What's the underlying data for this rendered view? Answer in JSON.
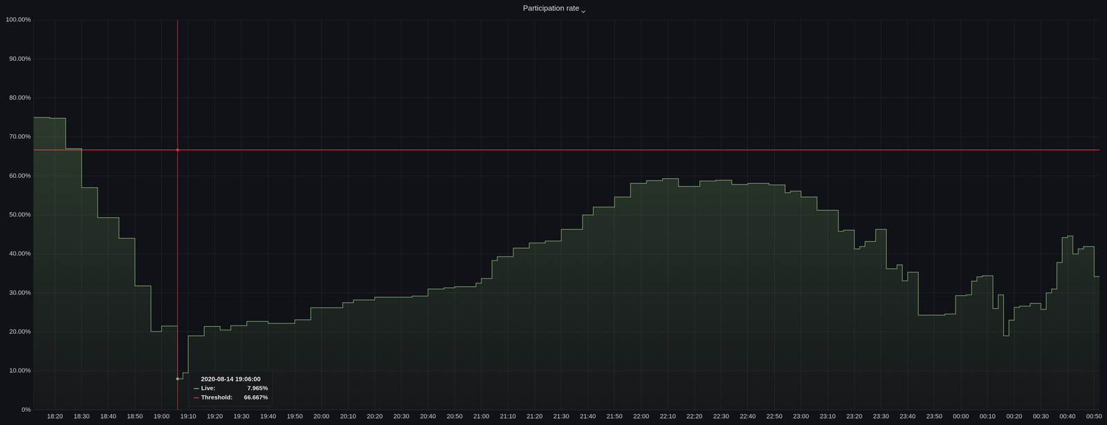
{
  "chart_data": {
    "type": "line",
    "title": "Participation rate",
    "line_style": "step",
    "grid": true,
    "categories": [
      null,
      null,
      null,
      null,
      "18:20",
      null,
      null,
      null,
      null,
      "18:30",
      null,
      null,
      null,
      null,
      "18:40",
      null,
      null,
      null,
      null,
      "18:50",
      null,
      null,
      null,
      null,
      "19:00",
      null,
      null,
      null,
      null,
      "19:10",
      null,
      null,
      null,
      null,
      "19:20",
      null,
      null,
      null,
      null,
      "19:30",
      null,
      null,
      null,
      null,
      "19:40",
      null,
      null,
      null,
      null,
      "19:50",
      null,
      null,
      null,
      null,
      "20:00",
      null,
      null,
      null,
      null,
      "20:10",
      null,
      null,
      null,
      null,
      "20:20",
      null,
      null,
      null,
      null,
      "20:30",
      null,
      null,
      null,
      null,
      "20:40",
      null,
      null,
      null,
      null,
      "20:50",
      null,
      null,
      null,
      null,
      "21:00",
      null,
      null,
      null,
      null,
      "21:10",
      null,
      null,
      null,
      null,
      "21:20",
      null,
      null,
      null,
      null,
      "21:30",
      null,
      null,
      null,
      null,
      "21:40",
      null,
      null,
      null,
      null,
      "21:50",
      null,
      null,
      null,
      null,
      "22:00",
      null,
      null,
      null,
      null,
      "22:10",
      null,
      null,
      null,
      null,
      "22:20",
      null,
      null,
      null,
      null,
      "22:30",
      null,
      null,
      null,
      null,
      "22:40",
      null,
      null,
      null,
      null,
      "22:50",
      null,
      null,
      null,
      null,
      "23:00",
      null,
      null,
      null,
      null,
      "23:10",
      null,
      null,
      null,
      null,
      "23:20",
      null,
      null,
      null,
      null,
      "23:30",
      null,
      null,
      null,
      null,
      "23:40",
      null,
      null,
      null,
      null,
      "23:50",
      null,
      null,
      null,
      null,
      "00:00",
      null,
      null,
      null,
      null,
      "00:10",
      null,
      null,
      null,
      null,
      "00:20",
      null,
      null,
      null,
      null,
      "00:30",
      null,
      null,
      null,
      null,
      "00:40",
      null,
      null,
      null,
      null,
      "00:50",
      null
    ],
    "series": [
      {
        "name": "Live",
        "color": "#7eb26d",
        "type": "area",
        "values": [
          75,
          75,
          75,
          74.8,
          74.8,
          74.8,
          67,
          67,
          67,
          57,
          57,
          57,
          49.3,
          49.3,
          49.3,
          49.3,
          44,
          44,
          44,
          31.8,
          31.8,
          31.8,
          20.1,
          20.1,
          21.5,
          21.5,
          21.5,
          7.965,
          9.5,
          19,
          19,
          19,
          21.4,
          21.4,
          21.4,
          20.5,
          20.5,
          21.6,
          21.6,
          21.6,
          22.7,
          22.7,
          22.7,
          22.7,
          22.2,
          22.2,
          22.2,
          22.2,
          22.2,
          23.1,
          23.1,
          23.1,
          26.2,
          26.2,
          26.2,
          26.2,
          26.2,
          26.2,
          27.5,
          27.5,
          28.2,
          28.2,
          28.2,
          28.2,
          28.9,
          28.9,
          28.9,
          28.9,
          28.9,
          28.9,
          28.9,
          29.2,
          29.2,
          29.2,
          31,
          31,
          31,
          31.3,
          31.3,
          31.6,
          31.6,
          31.6,
          31.6,
          32.5,
          33.7,
          33.7,
          38.3,
          39.3,
          39.3,
          39.3,
          41.5,
          41.5,
          41.5,
          42.8,
          42.8,
          42.8,
          43.3,
          43.3,
          43.3,
          46.3,
          46.3,
          46.3,
          46.3,
          50,
          50,
          52,
          52,
          52,
          52,
          54.6,
          54.6,
          54.6,
          58.1,
          58.1,
          58.1,
          58.8,
          58.8,
          58.8,
          59.3,
          59.3,
          59.3,
          57.3,
          57.3,
          57.3,
          57.3,
          58.7,
          58.7,
          58.7,
          58.9,
          58.9,
          58.9,
          57.8,
          57.8,
          57.8,
          58.1,
          58.1,
          58.1,
          58.1,
          57.7,
          57.7,
          57.7,
          55.7,
          56.1,
          56.1,
          54.6,
          54.6,
          54.6,
          51.2,
          51.2,
          51.2,
          51.2,
          45.8,
          46.1,
          46.1,
          41.3,
          41.9,
          43.2,
          43.2,
          46.3,
          46.3,
          36.2,
          36.2,
          37.2,
          33.1,
          35.3,
          35.3,
          24.3,
          24.3,
          24.3,
          24.3,
          24.3,
          24.6,
          24.6,
          29.3,
          29.3,
          29.5,
          33,
          34.1,
          34.4,
          34.4,
          26,
          29.5,
          19,
          23,
          26.3,
          26.6,
          26.6,
          27.3,
          27.3,
          25.8,
          30,
          31,
          37.8,
          44.2,
          44.6,
          40,
          41.3,
          41.9,
          41.9,
          34.2,
          34.2
        ]
      },
      {
        "name": "Threshold",
        "color": "#e02f44",
        "type": "line",
        "values": [
          66.667,
          66.667,
          66.667,
          66.667,
          66.667,
          66.667,
          66.667,
          66.667,
          66.667,
          66.667,
          66.667,
          66.667,
          66.667,
          66.667,
          66.667,
          66.667,
          66.667,
          66.667,
          66.667,
          66.667,
          66.667,
          66.667,
          66.667,
          66.667,
          66.667,
          66.667,
          66.667,
          66.667,
          66.667,
          66.667,
          66.667,
          66.667,
          66.667,
          66.667,
          66.667,
          66.667,
          66.667,
          66.667,
          66.667,
          66.667,
          66.667,
          66.667,
          66.667,
          66.667,
          66.667,
          66.667,
          66.667,
          66.667,
          66.667,
          66.667,
          66.667,
          66.667,
          66.667,
          66.667,
          66.667,
          66.667,
          66.667,
          66.667,
          66.667,
          66.667,
          66.667,
          66.667,
          66.667,
          66.667,
          66.667,
          66.667,
          66.667,
          66.667,
          66.667,
          66.667,
          66.667,
          66.667,
          66.667,
          66.667,
          66.667,
          66.667,
          66.667,
          66.667,
          66.667,
          66.667,
          66.667,
          66.667,
          66.667,
          66.667,
          66.667,
          66.667,
          66.667,
          66.667,
          66.667,
          66.667,
          66.667,
          66.667,
          66.667,
          66.667,
          66.667,
          66.667,
          66.667,
          66.667,
          66.667,
          66.667,
          66.667,
          66.667,
          66.667,
          66.667,
          66.667,
          66.667,
          66.667,
          66.667,
          66.667,
          66.667,
          66.667,
          66.667,
          66.667,
          66.667,
          66.667,
          66.667,
          66.667,
          66.667,
          66.667,
          66.667,
          66.667,
          66.667,
          66.667,
          66.667,
          66.667,
          66.667,
          66.667,
          66.667,
          66.667,
          66.667,
          66.667,
          66.667,
          66.667,
          66.667,
          66.667,
          66.667,
          66.667,
          66.667,
          66.667,
          66.667,
          66.667,
          66.667,
          66.667,
          66.667,
          66.667,
          66.667,
          66.667,
          66.667,
          66.667,
          66.667,
          66.667,
          66.667,
          66.667,
          66.667,
          66.667,
          66.667,
          66.667,
          66.667,
          66.667,
          66.667,
          66.667,
          66.667,
          66.667,
          66.667,
          66.667,
          66.667,
          66.667,
          66.667,
          66.667,
          66.667,
          66.667,
          66.667,
          66.667,
          66.667,
          66.667,
          66.667,
          66.667,
          66.667,
          66.667,
          66.667,
          66.667,
          66.667,
          66.667,
          66.667,
          66.667,
          66.667,
          66.667,
          66.667,
          66.667,
          66.667,
          66.667,
          66.667,
          66.667,
          66.667,
          66.667,
          66.667,
          66.667,
          66.667,
          66.667,
          66.667,
          66.667
        ]
      }
    ],
    "ylim": [
      0,
      100
    ],
    "yticks": [
      {
        "value": 0,
        "label": "0%"
      },
      {
        "value": 10,
        "label": "10.00%"
      },
      {
        "value": 20,
        "label": "20.00%"
      },
      {
        "value": 30,
        "label": "30.00%"
      },
      {
        "value": 40,
        "label": "40.00%"
      },
      {
        "value": 50,
        "label": "50.00%"
      },
      {
        "value": 60,
        "label": "60.00%"
      },
      {
        "value": 70,
        "label": "70.00%"
      },
      {
        "value": 80,
        "label": "80.00%"
      },
      {
        "value": 90,
        "label": "90.00%"
      },
      {
        "value": 100,
        "label": "100.00%"
      }
    ],
    "tooltip": {
      "title": "2020-08-14 19:06:00",
      "rows": [
        {
          "name": "Live:",
          "value": 7.965,
          "label": "7.965%"
        },
        {
          "name": "Threshold:",
          "value": 66.667,
          "label": "66.667%"
        }
      ]
    }
  }
}
